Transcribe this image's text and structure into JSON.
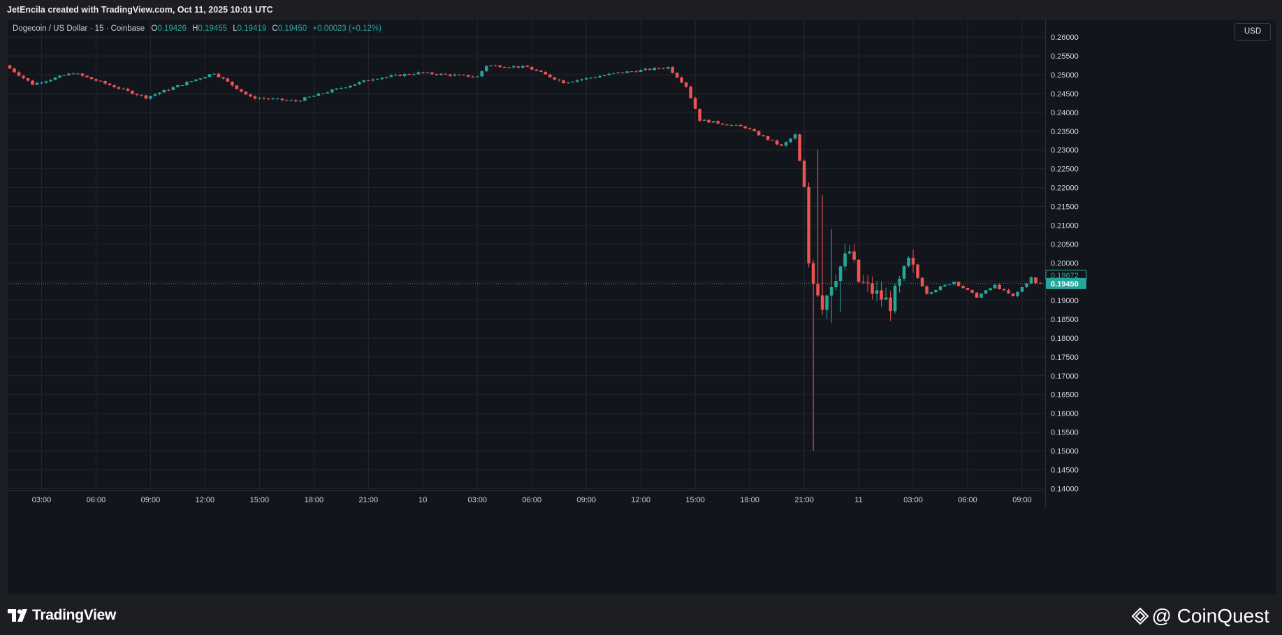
{
  "header": {
    "credit": "JetEncila created with TradingView.com, Oct 11, 2025 10:01 UTC"
  },
  "legend": {
    "symbol": "Dogecoin / US Dollar · 15 · Coinbase",
    "o_label": "O",
    "o": "0.19426",
    "h_label": "H",
    "h": "0.19455",
    "l_label": "L",
    "l": "0.19419",
    "c_label": "C",
    "c": "0.19450",
    "change": "+0.00023 (+0.12%)"
  },
  "currency_button": "USD",
  "footer": {
    "brand": "TradingView",
    "watermark": "@ CoinQuest"
  },
  "colors": {
    "up": "#26a69a",
    "down": "#ef5350",
    "background": "#13151c",
    "grid": "#22262f",
    "axis_text": "#d1d4dc",
    "last_price_tag": "#26a69a"
  },
  "icons": {
    "brand_logo": "tradingview-logo-icon",
    "watermark_logo": "diamond-logo-icon"
  },
  "chart_data": {
    "type": "candlestick",
    "interval_minutes": 15,
    "y_axis_labels": [
      "0.26000",
      "0.25500",
      "0.25000",
      "0.24500",
      "0.24000",
      "0.23500",
      "0.23000",
      "0.22500",
      "0.22000",
      "0.21500",
      "0.21000",
      "0.20500",
      "0.20000",
      "0.19500",
      "0.19000",
      "0.18500",
      "0.18000",
      "0.17500",
      "0.17000",
      "0.16500",
      "0.16000",
      "0.15500",
      "0.15000",
      "0.14500",
      "0.14000"
    ],
    "y_range": [
      0.1395,
      0.2645
    ],
    "y_axis_position": "right",
    "x_axis_labels": [
      "03:00",
      "06:00",
      "09:00",
      "12:00",
      "15:00",
      "18:00",
      "21:00",
      "10",
      "03:00",
      "06:00",
      "09:00",
      "12:00",
      "15:00",
      "18:00",
      "21:00",
      "11",
      "03:00",
      "06:00",
      "09:00"
    ],
    "x_range": [
      "2025-10-09 01:15",
      "2025-10-11 10:00"
    ],
    "grid": true,
    "price_tags": {
      "last": "0.19450",
      "previous_close": "0.19672"
    },
    "anchors": [
      [
        "2025-10-09 01:15",
        0.2525
      ],
      [
        "2025-10-09 02:45",
        0.2475
      ],
      [
        "2025-10-09 05:00",
        0.2505
      ],
      [
        "2025-10-09 09:00",
        0.244
      ],
      [
        "2025-10-09 12:45",
        0.2505
      ],
      [
        "2025-10-09 14:45",
        0.244
      ],
      [
        "2025-10-09 17:15",
        0.243
      ],
      [
        "2025-10-09 21:30",
        0.249
      ],
      [
        "2025-10-10 00:00",
        0.2505
      ],
      [
        "2025-10-10 03:15",
        0.2495
      ],
      [
        "2025-10-10 03:45",
        0.2525
      ],
      [
        "2025-10-10 06:00",
        0.252
      ],
      [
        "2025-10-10 08:00",
        0.248
      ],
      [
        "2025-10-10 11:00",
        0.2505
      ],
      [
        "2025-10-10 13:45",
        0.252
      ],
      [
        "2025-10-10 14:45",
        0.247
      ],
      [
        "2025-10-10 15:30",
        0.238
      ],
      [
        "2025-10-10 18:00",
        0.236
      ],
      [
        "2025-10-10 20:00",
        0.231
      ],
      [
        "2025-10-10 20:45",
        0.234
      ],
      [
        "2025-10-10 21:15",
        0.22
      ],
      [
        "2025-10-10 21:30",
        0.2
      ],
      [
        "2025-10-10 21:45",
        0.196
      ],
      [
        "2025-10-10 22:15",
        0.189
      ],
      [
        "2025-10-10 22:45",
        0.195
      ],
      [
        "2025-10-10 23:45",
        0.203
      ],
      [
        "2025-10-11 00:15",
        0.195
      ],
      [
        "2025-10-11 02:00",
        0.189
      ],
      [
        "2025-10-11 03:00",
        0.2
      ],
      [
        "2025-10-11 04:00",
        0.192
      ],
      [
        "2025-10-11 05:30",
        0.195
      ],
      [
        "2025-10-11 06:45",
        0.191
      ],
      [
        "2025-10-11 07:45",
        0.194
      ],
      [
        "2025-10-11 08:45",
        0.191
      ],
      [
        "2025-10-11 09:45",
        0.196
      ],
      [
        "2025-10-11 10:00",
        0.1945
      ]
    ],
    "spikes": [
      {
        "time": "2025-10-10 21:30",
        "low": 0.15
      },
      {
        "time": "2025-10-10 21:45",
        "high": 0.23
      },
      {
        "time": "2025-10-10 22:00",
        "high": 0.218
      },
      {
        "time": "2025-10-10 22:15",
        "low": 0.185
      },
      {
        "time": "2025-10-10 22:30",
        "high": 0.209,
        "low": 0.184
      },
      {
        "time": "2025-10-10 23:00",
        "low": 0.187
      },
      {
        "time": "2025-10-10 23:45",
        "high": 0.205
      },
      {
        "time": "2025-10-11 02:00",
        "low": 0.1865
      }
    ]
  }
}
